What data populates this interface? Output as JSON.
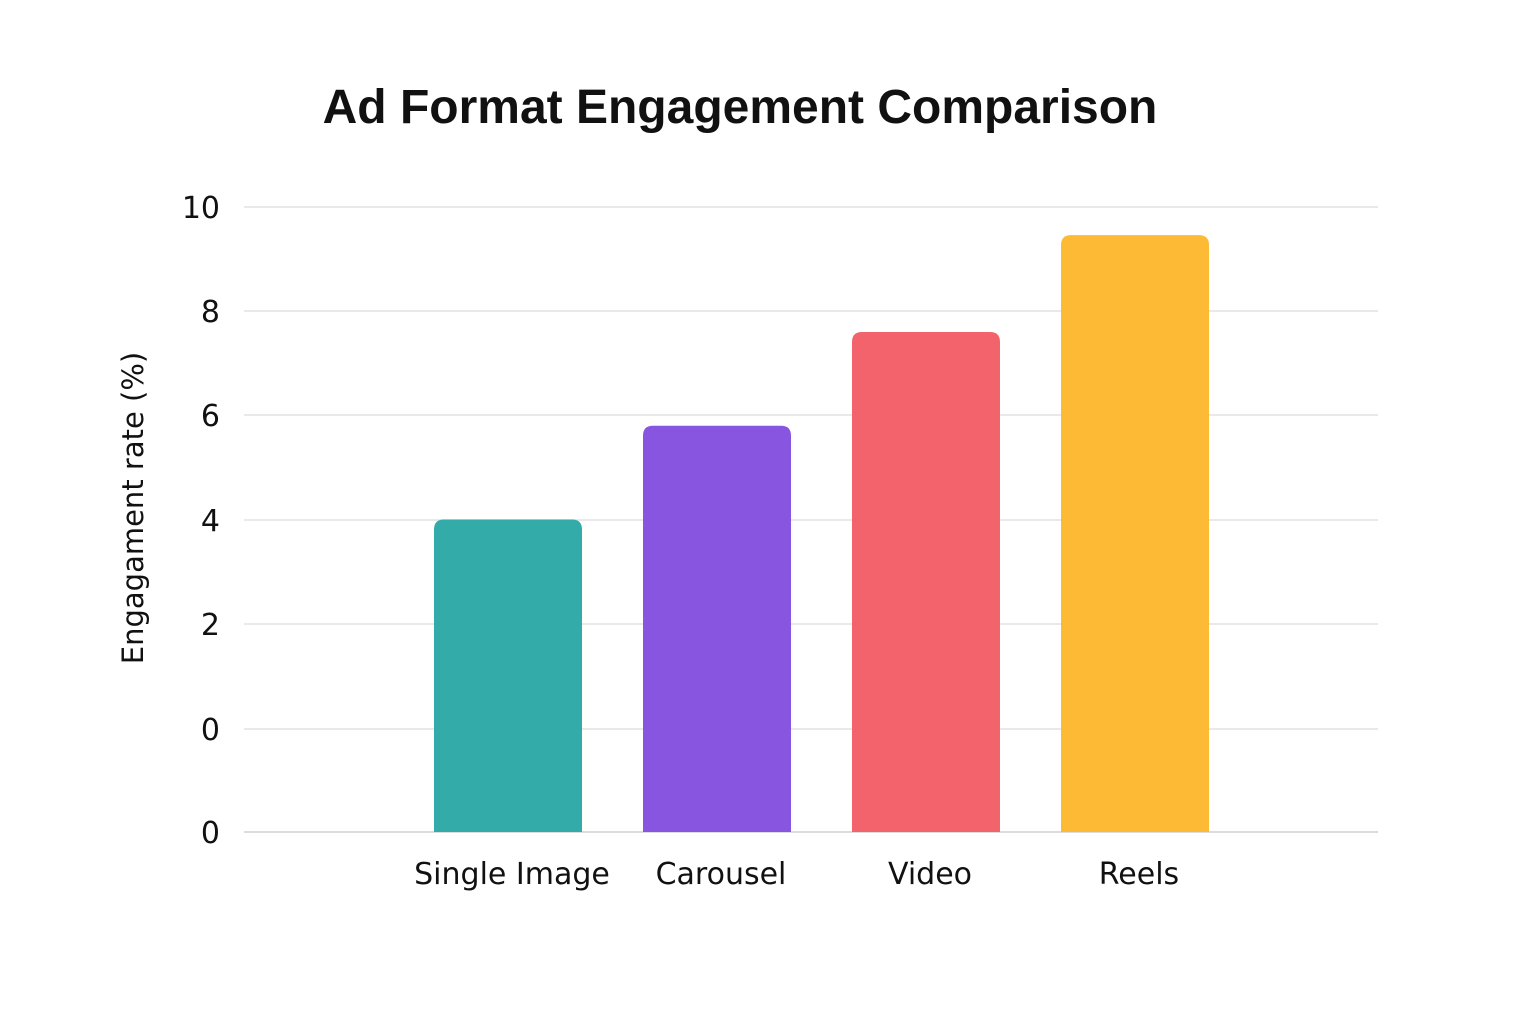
{
  "chart_data": {
    "type": "bar",
    "title": "Ad Format Engagement Comparison",
    "xlabel": "",
    "ylabel": "Engagament rate (%)",
    "categories": [
      "Single Image",
      "Carousel",
      "Video",
      "Reels"
    ],
    "values": [
      5.0,
      6.5,
      8.0,
      9.55
    ],
    "colors": [
      "#33aba8",
      "#8855e1",
      "#f2636c",
      "#fdba35"
    ],
    "ylim": [
      0,
      10
    ],
    "y_tick_labels": [
      "0",
      "0",
      "2",
      "4",
      "6",
      "8",
      "10"
    ],
    "grid": true,
    "legend": "none"
  }
}
